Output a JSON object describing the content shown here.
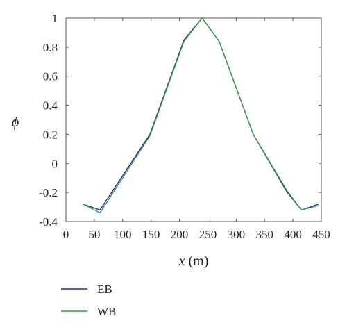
{
  "chart_data": {
    "type": "line",
    "title": "",
    "xlabel": "x (m)",
    "xlabel_var": "x",
    "xlabel_unit": " (m)",
    "ylabel": "ϕ",
    "xlim": [
      0,
      450
    ],
    "ylim": [
      -0.4,
      1
    ],
    "xticks": [
      0,
      50,
      100,
      150,
      200,
      250,
      300,
      350,
      400,
      450
    ],
    "yticks": [
      -0.4,
      -0.2,
      0,
      0.2,
      0.4,
      0.6,
      0.8,
      1
    ],
    "ytick_labels": [
      "-0.4",
      "-0.2",
      "0",
      "0.2",
      "0.4",
      "0.6",
      "0.8",
      "1"
    ],
    "grid": false,
    "legend_position": "below",
    "series": [
      {
        "name": "EB",
        "color": "#2b2b9a",
        "x": [
          30,
          60,
          148,
          208,
          240,
          270,
          330,
          390,
          415,
          445
        ],
        "y": [
          -0.28,
          -0.32,
          0.2,
          0.85,
          1.0,
          0.84,
          0.2,
          -0.2,
          -0.32,
          -0.28
        ]
      },
      {
        "name": "WB",
        "color": "#3d9a3d",
        "x": [
          30,
          60,
          148,
          208,
          240,
          270,
          330,
          390,
          415,
          445
        ],
        "y": [
          -0.28,
          -0.34,
          0.19,
          0.84,
          1.0,
          0.84,
          0.2,
          -0.19,
          -0.32,
          -0.29
        ]
      }
    ]
  }
}
